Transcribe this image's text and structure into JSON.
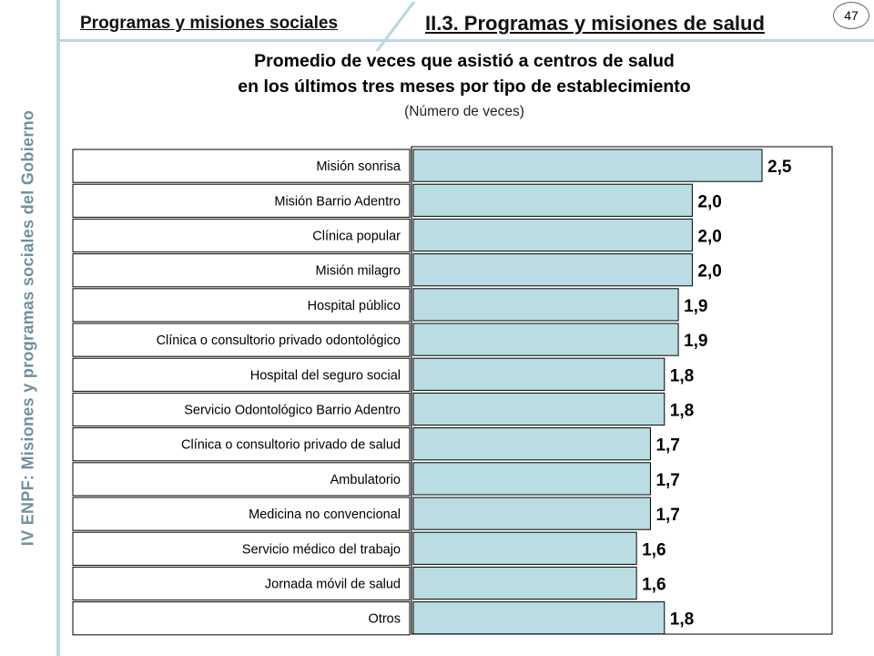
{
  "sidebar": {
    "text": "IV ENPF:  Misiones y programas sociales del Gobierno"
  },
  "header": {
    "left": "Programas y misiones sociales",
    "right": "II.3. Programas y misiones de salud",
    "page_number": "47"
  },
  "chart_data": {
    "type": "bar",
    "orientation": "horizontal",
    "title": "Promedio de veces que asistió a centros de salud",
    "title_line2": "en los últimos tres meses por tipo de establecimiento",
    "subtitle": "(Número de veces)",
    "categories": [
      "Misión sonrisa",
      "Misión Barrio Adentro",
      "Clínica popular",
      "Misión milagro",
      "Hospital público",
      "Clínica o consultorio privado odontológico",
      "Hospital del seguro social",
      "Servicio Odontológico Barrio Adentro",
      "Clínica o consultorio privado de salud",
      "Ambulatorio",
      "Medicina no convencional",
      "Servicio médico del trabajo",
      "Jornada móvil de salud",
      "Otros"
    ],
    "values": [
      2.5,
      2.0,
      2.0,
      2.0,
      1.9,
      1.9,
      1.8,
      1.8,
      1.7,
      1.7,
      1.7,
      1.6,
      1.6,
      1.8
    ],
    "value_labels": [
      "2,5",
      "2,0",
      "2,0",
      "2,0",
      "1,9",
      "1,9",
      "1,8",
      "1,8",
      "1,7",
      "1,7",
      "1,7",
      "1,6",
      "1,6",
      "1,8"
    ],
    "xlim": [
      0,
      2.5
    ],
    "bar_color": "#b9dde2",
    "legend": "none",
    "grid": false
  }
}
